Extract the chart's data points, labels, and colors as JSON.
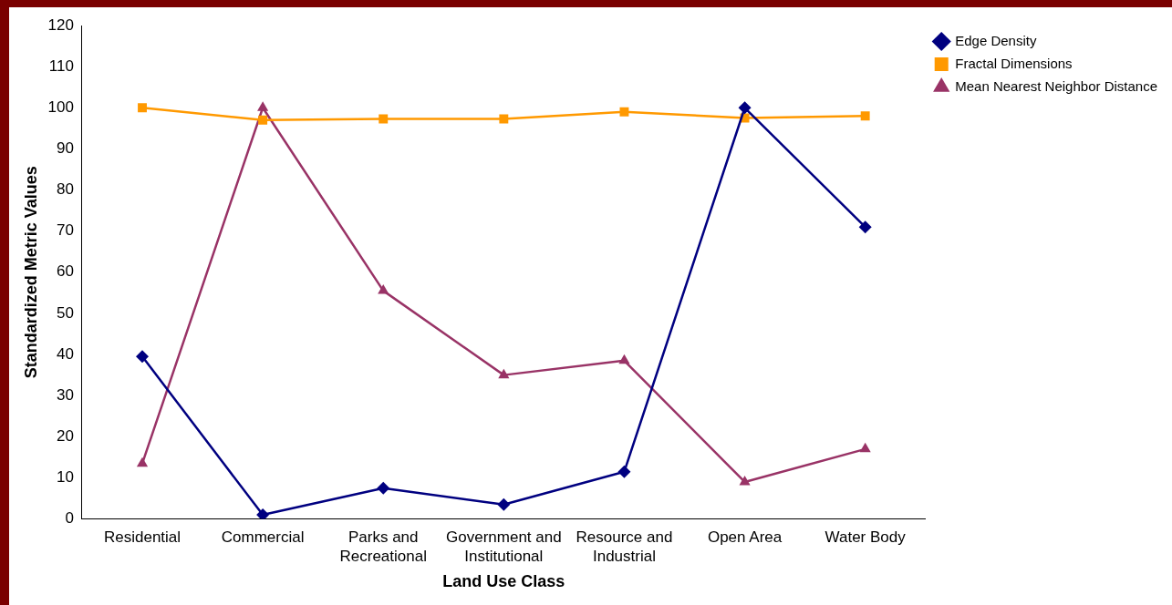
{
  "chart_data": {
    "type": "line",
    "xlabel": "Land Use Class",
    "ylabel": "Standardized Metric Values",
    "categories": [
      "Residential",
      "Commercial",
      "Parks and Recreational",
      "Government and Institutional",
      "Resource and Industrial",
      "Open Area",
      "Water Body"
    ],
    "series": [
      {
        "name": "Edge Density",
        "color": "#000080",
        "marker": "diamond",
        "values": [
          39.5,
          1,
          7.5,
          3.5,
          11.5,
          100,
          71
        ]
      },
      {
        "name": "Fractal Dimensions",
        "color": "#ff9900",
        "marker": "square",
        "values": [
          100,
          97,
          97.3,
          97.3,
          99,
          97.5,
          98
        ]
      },
      {
        "name": "Mean Nearest Neighbor Distance",
        "color": "#993366",
        "marker": "triangle",
        "values": [
          13.5,
          100,
          55.5,
          35,
          38.5,
          9,
          17
        ]
      }
    ],
    "ylim": [
      0,
      120
    ],
    "yticks": [
      0,
      10,
      20,
      30,
      40,
      50,
      60,
      70,
      80,
      90,
      100,
      110,
      120
    ],
    "grid": false,
    "legend": "top right",
    "line_style": "solid"
  }
}
